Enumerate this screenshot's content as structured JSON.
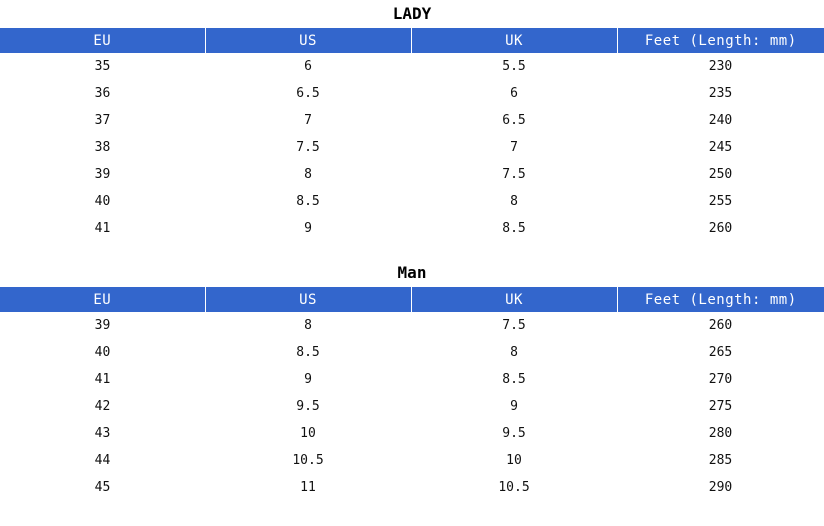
{
  "columns": [
    "EU",
    "US",
    "UK",
    "Feet (Length: mm)"
  ],
  "lady": {
    "title": "LADY",
    "rows": [
      [
        "35",
        "6",
        "5.5",
        "230"
      ],
      [
        "36",
        "6.5",
        "6",
        "235"
      ],
      [
        "37",
        "7",
        "6.5",
        "240"
      ],
      [
        "38",
        "7.5",
        "7",
        "245"
      ],
      [
        "39",
        "8",
        "7.5",
        "250"
      ],
      [
        "40",
        "8.5",
        "8",
        "255"
      ],
      [
        "41",
        "9",
        "8.5",
        "260"
      ]
    ]
  },
  "man": {
    "title": "Man",
    "rows": [
      [
        "39",
        "8",
        "7.5",
        "260"
      ],
      [
        "40",
        "8.5",
        "8",
        "265"
      ],
      [
        "41",
        "9",
        "8.5",
        "270"
      ],
      [
        "42",
        "9.5",
        "9",
        "275"
      ],
      [
        "43",
        "10",
        "9.5",
        "280"
      ],
      [
        "44",
        "10.5",
        "10",
        "285"
      ],
      [
        "45",
        "11",
        "10.5",
        "290"
      ]
    ]
  },
  "colors": {
    "header_bg": "#3366cc",
    "header_text": "#ffffff"
  }
}
